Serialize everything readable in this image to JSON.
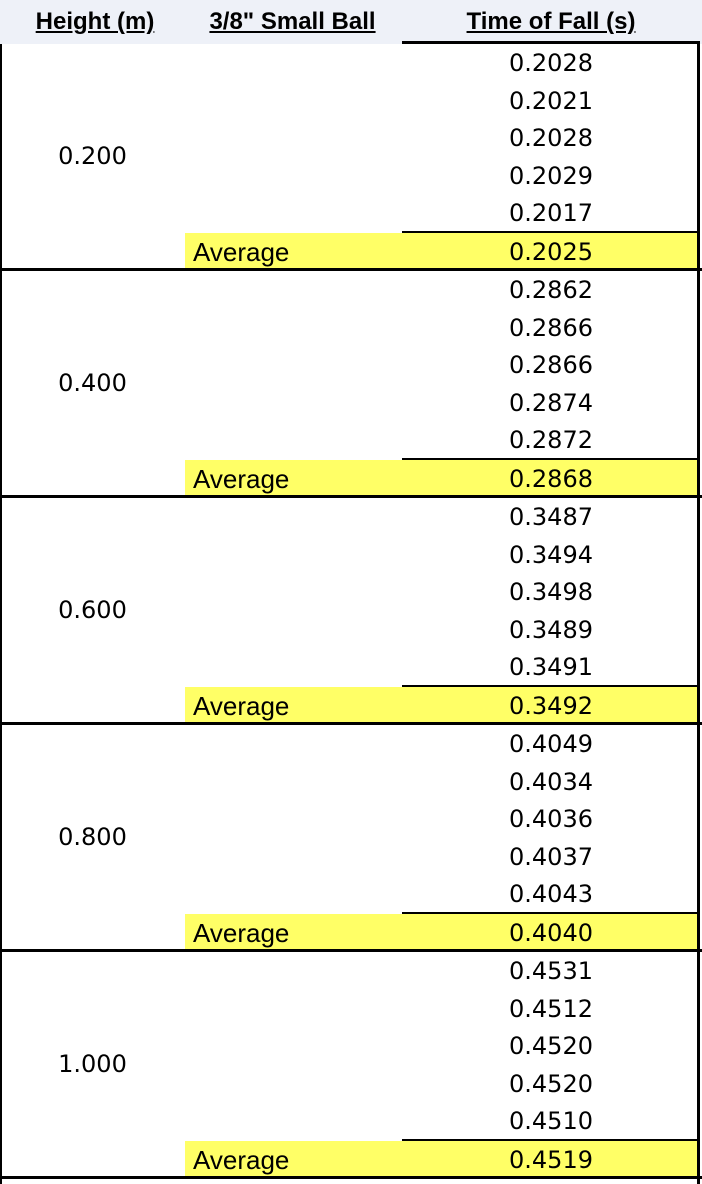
{
  "headers": {
    "height": "Height (m)",
    "ball": "3/8\" Small Ball",
    "time": "Time of Fall (s)"
  },
  "average_label": "Average",
  "groups": [
    {
      "height": "0.200",
      "trials": [
        "0.2028",
        "0.2021",
        "0.2028",
        "0.2029",
        "0.2017"
      ],
      "average": "0.2025"
    },
    {
      "height": "0.400",
      "trials": [
        "0.2862",
        "0.2866",
        "0.2866",
        "0.2874",
        "0.2872"
      ],
      "average": "0.2868"
    },
    {
      "height": "0.600",
      "trials": [
        "0.3487",
        "0.3494",
        "0.3498",
        "0.3489",
        "0.3491"
      ],
      "average": "0.3492"
    },
    {
      "height": "0.800",
      "trials": [
        "0.4049",
        "0.4034",
        "0.4036",
        "0.4037",
        "0.4043"
      ],
      "average": "0.4040"
    },
    {
      "height": "1.000",
      "trials": [
        "0.4531",
        "0.4512",
        "0.4520",
        "0.4520",
        "0.4510"
      ],
      "average": "0.4519"
    }
  ],
  "colors": {
    "highlight": "#ffff66",
    "header_bg": "#eef1f8"
  }
}
